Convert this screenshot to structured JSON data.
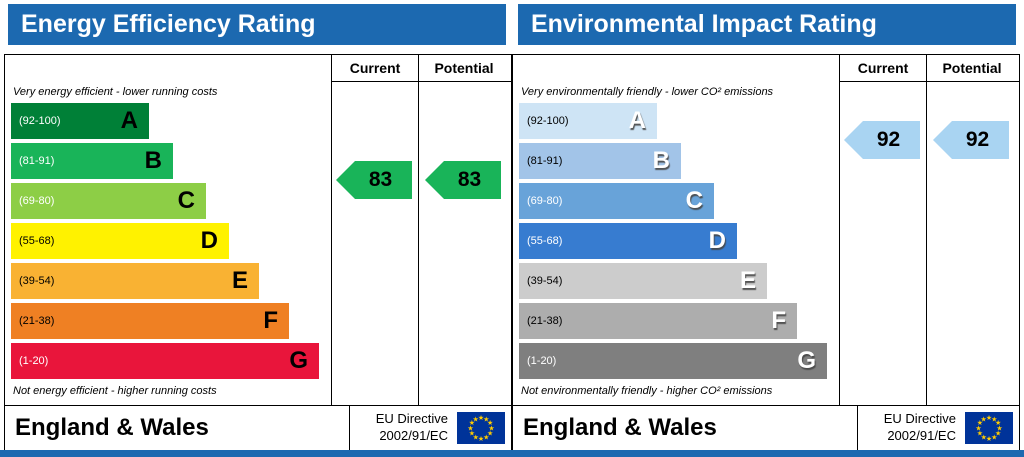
{
  "colors": {
    "header_blue": "#1c69b0",
    "eu_flag_blue": "#003399",
    "eu_star_yellow": "#ffcc00"
  },
  "chart_data": [
    {
      "type": "bar",
      "title": "Energy Efficiency Rating",
      "categories": [
        "A (92-100)",
        "B (81-91)",
        "C (69-80)",
        "D (55-68)",
        "E (39-54)",
        "F (21-38)",
        "G (1-20)"
      ],
      "series": [
        {
          "name": "Current",
          "values": [
            83
          ]
        },
        {
          "name": "Potential",
          "values": [
            83
          ]
        }
      ],
      "current": 83,
      "potential": 83,
      "current_band": "B",
      "potential_band": "B",
      "scale": [
        1,
        100
      ]
    },
    {
      "type": "bar",
      "title": "Environmental Impact Rating",
      "categories": [
        "A (92-100)",
        "B (81-91)",
        "C (69-80)",
        "D (55-68)",
        "E (39-54)",
        "F (21-38)",
        "G (1-20)"
      ],
      "series": [
        {
          "name": "Current",
          "values": [
            92
          ]
        },
        {
          "name": "Potential",
          "values": [
            92
          ]
        }
      ],
      "current": 92,
      "potential": 92,
      "current_band": "A",
      "potential_band": "A",
      "scale": [
        1,
        100
      ]
    }
  ],
  "panels": [
    {
      "title": "Energy Efficiency Rating",
      "columns": {
        "current": "Current",
        "potential": "Potential"
      },
      "top_label": "Very energy efficient - lower running costs",
      "bottom_label": "Not energy efficient - higher running costs",
      "bands": [
        {
          "letter": "A",
          "range": "(92-100)",
          "color": "#008037",
          "range_color": "#ffffff"
        },
        {
          "letter": "B",
          "range": "(81-91)",
          "color": "#19b459",
          "range_color": "#ffffff"
        },
        {
          "letter": "C",
          "range": "(69-80)",
          "color": "#8dce46",
          "range_color": "#ffffff"
        },
        {
          "letter": "D",
          "range": "(55-68)",
          "color": "#fff200",
          "range_color": "#000000"
        },
        {
          "letter": "E",
          "range": "(39-54)",
          "color": "#f9b233",
          "range_color": "#000000"
        },
        {
          "letter": "F",
          "range": "(21-38)",
          "color": "#ef8023",
          "range_color": "#000000"
        },
        {
          "letter": "G",
          "range": "(1-20)",
          "color": "#e9153b",
          "range_color": "#ffffff"
        }
      ],
      "current": {
        "value": "83",
        "arrow_color": "#19b459"
      },
      "potential": {
        "value": "83",
        "arrow_color": "#19b459"
      },
      "region": "England & Wales",
      "directive": {
        "line1": "EU Directive",
        "line2": "2002/91/EC"
      }
    },
    {
      "title": "Environmental Impact Rating",
      "columns": {
        "current": "Current",
        "potential": "Potential"
      },
      "top_label": "Very environmentally friendly - lower CO² emissions",
      "bottom_label": "Not environmentally friendly - higher CO² emissions",
      "bands": [
        {
          "letter": "A",
          "range": "(92-100)",
          "color": "#cee4f5",
          "range_color": "#000000"
        },
        {
          "letter": "B",
          "range": "(81-91)",
          "color": "#a2c4e8",
          "range_color": "#000000"
        },
        {
          "letter": "C",
          "range": "(69-80)",
          "color": "#68a3d9",
          "range_color": "#ffffff"
        },
        {
          "letter": "D",
          "range": "(55-68)",
          "color": "#377cd0",
          "range_color": "#ffffff"
        },
        {
          "letter": "E",
          "range": "(39-54)",
          "color": "#cccccc",
          "range_color": "#000000"
        },
        {
          "letter": "F",
          "range": "(21-38)",
          "color": "#adadad",
          "range_color": "#000000"
        },
        {
          "letter": "G",
          "range": "(1-20)",
          "color": "#7f7f7f",
          "range_color": "#ffffff"
        }
      ],
      "current": {
        "value": "92",
        "arrow_color": "#a9d4f2"
      },
      "potential": {
        "value": "92",
        "arrow_color": "#a9d4f2"
      },
      "region": "England & Wales",
      "directive": {
        "line1": "EU Directive",
        "line2": "2002/91/EC"
      }
    }
  ]
}
